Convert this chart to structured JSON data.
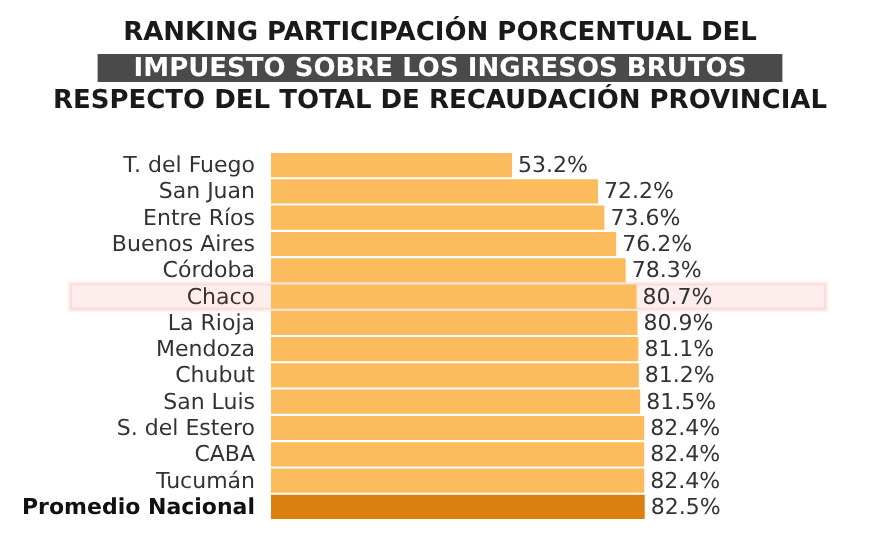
{
  "chart_data": {
    "type": "bar",
    "orientation": "horizontal",
    "title": "RANKING PARTICIPACIÓN PORCENTUAL DEL\nIMPUESTO SOBRE LOS INGRESOS BRUTOS\nRESPECTO DEL TOTAL DE RECAUDACIÓN PROVINCIAL",
    "categories": [
      "T. del Fuego",
      "San Juan",
      "Entre Ríos",
      "Buenos Aires",
      "Córdoba",
      "Chaco",
      "La Rioja",
      "Mendoza",
      "Chubut",
      "San Luis",
      "S. del Estero",
      "CABA",
      "Tucumán",
      "Promedio Nacional"
    ],
    "values": [
      53.2,
      72.2,
      73.6,
      76.2,
      78.3,
      80.7,
      80.9,
      81.1,
      81.2,
      81.5,
      82.4,
      82.4,
      82.4,
      82.5
    ],
    "value_labels": [
      "53.2%",
      "72.2%",
      "73.6%",
      "76.2%",
      "78.3%",
      "80.7%",
      "80.9%",
      "81.1%",
      "81.2%",
      "81.5%",
      "82.4%",
      "82.4%",
      "82.4%",
      "82.5%"
    ],
    "colors": [
      "#fcbb5c",
      "#fcbb5c",
      "#fcbb5c",
      "#fcbb5c",
      "#fcbb5c",
      "#fcbb5c",
      "#fcbb5c",
      "#fcbb5c",
      "#fcbb5c",
      "#fcbb5c",
      "#fcbb5c",
      "#fcbb5c",
      "#fcbb5c",
      "#d9800f"
    ],
    "bands": [
      {
        "axis": "y",
        "from": "Chaco",
        "to": "Chaco",
        "color": "#e8141c"
      }
    ]
  }
}
